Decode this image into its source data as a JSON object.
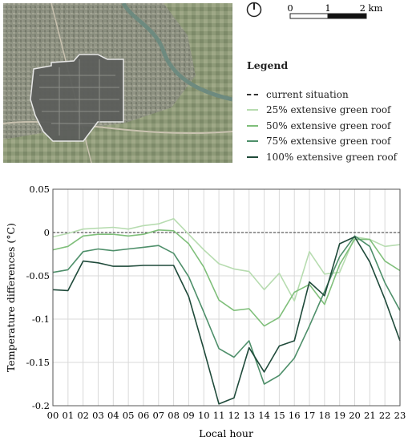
{
  "map": {
    "north_symbol": "north-arrow-icon",
    "scale_labels": [
      "0",
      "1",
      "2 km"
    ]
  },
  "legend": {
    "title": "Legend",
    "items": [
      {
        "label": "current situation",
        "color": "#333333",
        "dashed": true
      },
      {
        "label": "25% extensive green roof",
        "color": "#b7dcb0",
        "dashed": false
      },
      {
        "label": "50% extensive green roof",
        "color": "#7fbf7a",
        "dashed": false
      },
      {
        "label": "75% extensive green roof",
        "color": "#4e8f6a",
        "dashed": false
      },
      {
        "label": "100% extensive green roof",
        "color": "#1f4a3a",
        "dashed": false
      }
    ]
  },
  "chart_data": {
    "type": "line",
    "xlabel": "Local hour",
    "ylabel": "Temperature differences (°C)",
    "categories": [
      "00",
      "01",
      "02",
      "03",
      "04",
      "05",
      "06",
      "07",
      "08",
      "09",
      "10",
      "11",
      "12",
      "13",
      "14",
      "15",
      "16",
      "17",
      "18",
      "19",
      "20",
      "21",
      "22",
      "23"
    ],
    "ylim": [
      -0.2,
      0.05
    ],
    "yticks": [
      0.05,
      0,
      -0.05,
      -0.1,
      -0.15,
      -0.2
    ],
    "ytick_labels": [
      "0.05",
      "0",
      "-0.05",
      "-0.1",
      "-0.15",
      "-0.2"
    ],
    "grid": true,
    "series": [
      {
        "name": "current situation",
        "color": "#333333",
        "dashed": true,
        "values": [
          0,
          0,
          0,
          0,
          0,
          0,
          0,
          0,
          0,
          0,
          0,
          0,
          0,
          0,
          0,
          0,
          0,
          0,
          0,
          0,
          0,
          0,
          0,
          0
        ]
      },
      {
        "name": "25% extensive green roof",
        "color": "#b7dcb0",
        "dashed": false,
        "values": [
          -0.005,
          -0.001,
          0.004,
          0.005,
          0.006,
          0.004,
          0.008,
          0.01,
          0.016,
          -0.002,
          -0.02,
          -0.036,
          -0.042,
          -0.045,
          -0.066,
          -0.047,
          -0.079,
          -0.022,
          -0.048,
          -0.046,
          -0.005,
          -0.008,
          -0.016,
          -0.014
        ]
      },
      {
        "name": "50% extensive green roof",
        "color": "#7fbf7a",
        "dashed": false,
        "values": [
          -0.02,
          -0.016,
          -0.004,
          -0.002,
          -0.002,
          -0.004,
          -0.002,
          0.003,
          0.002,
          -0.013,
          -0.04,
          -0.078,
          -0.09,
          -0.088,
          -0.108,
          -0.098,
          -0.069,
          -0.06,
          -0.083,
          -0.037,
          -0.008,
          -0.008,
          -0.033,
          -0.044
        ]
      },
      {
        "name": "75% extensive green roof",
        "color": "#4e8f6a",
        "dashed": false,
        "values": [
          -0.046,
          -0.043,
          -0.022,
          -0.019,
          -0.021,
          -0.019,
          -0.017,
          -0.015,
          -0.024,
          -0.051,
          -0.092,
          -0.134,
          -0.144,
          -0.125,
          -0.175,
          -0.165,
          -0.145,
          -0.108,
          -0.068,
          -0.028,
          -0.004,
          -0.016,
          -0.058,
          -0.09
        ]
      },
      {
        "name": "100% extensive green roof",
        "color": "#1f4a3a",
        "dashed": false,
        "values": [
          -0.066,
          -0.067,
          -0.033,
          -0.035,
          -0.039,
          -0.039,
          -0.038,
          -0.038,
          -0.038,
          -0.074,
          -0.135,
          -0.198,
          -0.191,
          -0.133,
          -0.161,
          -0.131,
          -0.125,
          -0.057,
          -0.073,
          -0.013,
          -0.005,
          -0.034,
          -0.077,
          -0.125
        ]
      }
    ]
  }
}
